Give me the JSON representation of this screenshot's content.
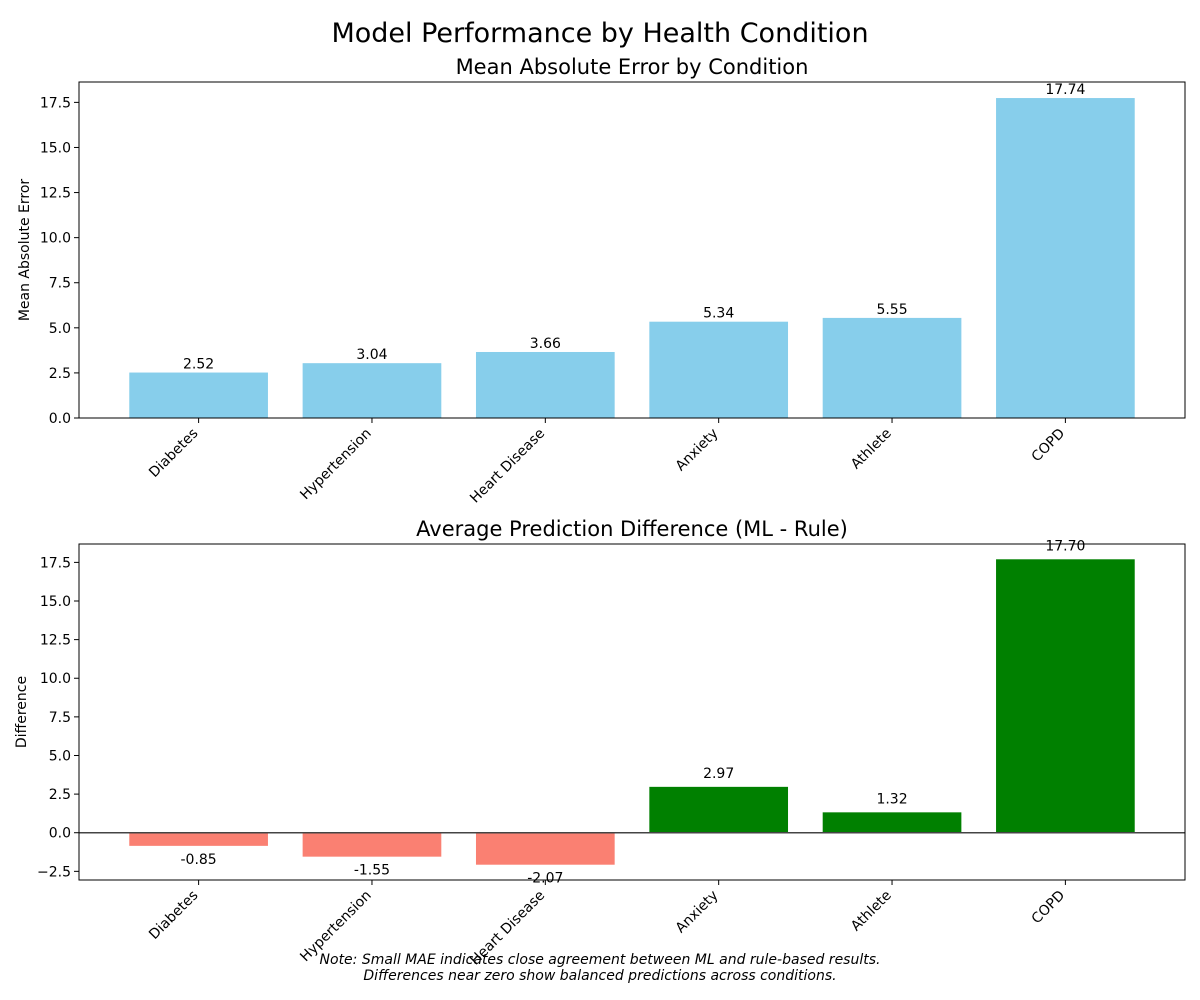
{
  "figure": {
    "title": "Model Performance by Health Condition",
    "note_lines": [
      "Note: Small MAE indicates close agreement between ML and rule-based results.",
      "Differences near zero show balanced predictions across conditions."
    ]
  },
  "chart_data": [
    {
      "type": "bar",
      "title": "Mean Absolute Error by Condition",
      "xlabel": "",
      "ylabel": "Mean Absolute Error",
      "categories": [
        "Diabetes",
        "Hypertension",
        "Heart Disease",
        "Anxiety",
        "Athlete",
        "COPD"
      ],
      "values": [
        2.52,
        3.04,
        3.66,
        5.34,
        5.55,
        17.74
      ],
      "value_labels": [
        "2.52",
        "3.04",
        "3.66",
        "5.34",
        "5.55",
        "17.74"
      ],
      "ylim": [
        0,
        18.63
      ],
      "yticks": [
        0,
        2.5,
        5,
        7.5,
        10,
        12.5,
        15,
        17.5
      ],
      "ytick_labels": [
        "0.0",
        "2.5",
        "5.0",
        "7.5",
        "10.0",
        "12.5",
        "15.0",
        "17.5"
      ],
      "bar_color": "#87ceeb",
      "grid": false,
      "zero_line": false
    },
    {
      "type": "bar",
      "title": "Average Prediction Difference (ML - Rule)",
      "xlabel": "",
      "ylabel": "Difference",
      "categories": [
        "Diabetes",
        "Hypertension",
        "Heart Disease",
        "Anxiety",
        "Athlete",
        "COPD"
      ],
      "values": [
        -0.85,
        -1.55,
        -2.07,
        2.97,
        1.32,
        17.7
      ],
      "value_labels": [
        "-0.85",
        "-1.55",
        "-2.07",
        "2.97",
        "1.32",
        "17.70"
      ],
      "ylim": [
        -3.06,
        18.69
      ],
      "yticks": [
        -2.5,
        0,
        2.5,
        5,
        7.5,
        10,
        12.5,
        15,
        17.5
      ],
      "ytick_labels": [
        "−2.5",
        "0.0",
        "2.5",
        "5.0",
        "7.5",
        "10.0",
        "12.5",
        "15.0",
        "17.5"
      ],
      "positive_color": "#008000",
      "negative_color": "#fa8072",
      "grid": false,
      "zero_line": true
    }
  ]
}
